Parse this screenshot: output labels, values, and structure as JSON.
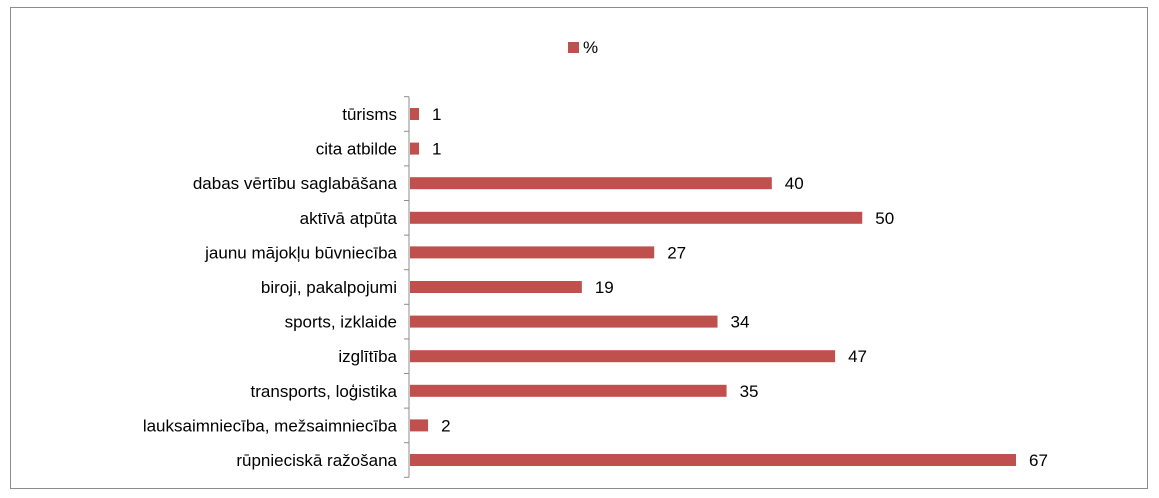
{
  "chart_data": {
    "type": "bar",
    "orientation": "horizontal",
    "categories": [
      "tūrisms",
      "cita atbilde",
      "dabas vērtību saglabāšana",
      "aktīvā atpūta",
      "jaunu mājokļu būvniecība",
      "biroji, pakalpojumi",
      "sports, izklaide",
      "izglītība",
      "transports, loģistika",
      "lauksaimniecība, mežsaimniecība",
      "rūpnieciskā ražošana"
    ],
    "series": [
      {
        "name": "%",
        "values": [
          1,
          1,
          40,
          50,
          27,
          19,
          34,
          47,
          35,
          2,
          67
        ],
        "color": "#c0504d"
      }
    ],
    "legend_position": "top",
    "grid": false,
    "data_labels": true,
    "xlim": [
      0,
      67
    ]
  }
}
